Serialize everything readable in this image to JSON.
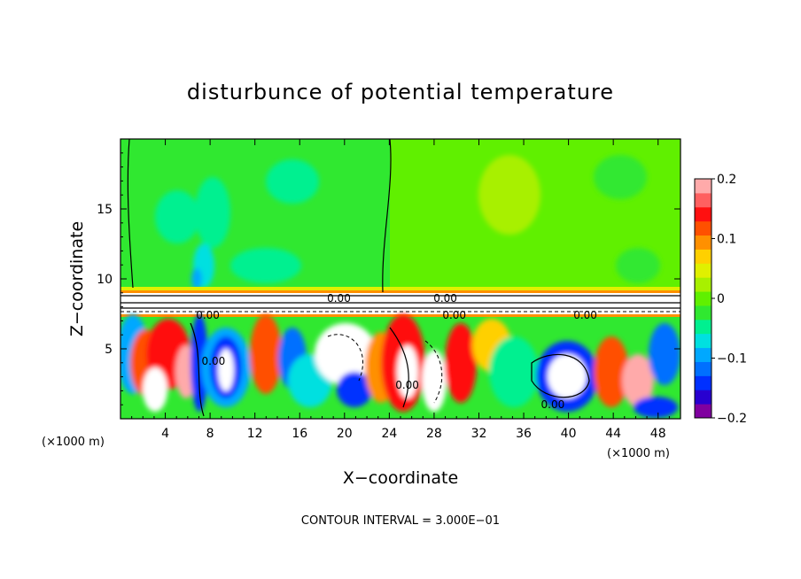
{
  "chart_data": {
    "type": "heatmap",
    "title": "disturbunce of potential temperature",
    "xlabel": "X−coordinate",
    "ylabel": "Z−coordinate",
    "x_unit": "(×1000 m)",
    "x_unit_right": "(×1000 m)",
    "xlim": [
      0,
      50
    ],
    "ylim": [
      0,
      20
    ],
    "xticks": [
      4,
      8,
      12,
      16,
      20,
      24,
      28,
      32,
      36,
      40,
      44,
      48
    ],
    "xtick_labels": [
      "4",
      "8",
      "12",
      "16",
      "20",
      "24",
      "28",
      "32",
      "36",
      "40",
      "44",
      "48"
    ],
    "yticks": [
      5,
      10,
      15
    ],
    "ytick_labels": [
      "5",
      "10",
      "15"
    ],
    "footer": "CONTOUR INTERVAL = 3.000E−01",
    "colorbar": {
      "min": -0.2,
      "max": 0.2,
      "ticks": [
        0.2,
        0.1,
        0,
        -0.1,
        -0.2
      ],
      "tick_labels": [
        "0.2",
        "0.1",
        "0",
        "−0.1",
        "−0.2"
      ],
      "colors": [
        "#8000a0",
        "#2800d0",
        "#0030ff",
        "#0070ff",
        "#00a8ff",
        "#00e0e0",
        "#00f090",
        "#30e830",
        "#60f000",
        "#a8f000",
        "#e0f000",
        "#ffd000",
        "#ff9000",
        "#ff5000",
        "#ff1010",
        "#ff6060",
        "#ffaaaa"
      ]
    },
    "contour_labels": [
      {
        "text": "0.00",
        "x": 7.8,
        "z": 7.4
      },
      {
        "text": "0.00",
        "x": 19.5,
        "z": 8.6
      },
      {
        "text": "0.00",
        "x": 29.0,
        "z": 8.6
      },
      {
        "text": "0.00",
        "x": 29.8,
        "z": 7.4
      },
      {
        "text": "0.00",
        "x": 41.5,
        "z": 7.4
      },
      {
        "text": "0.00",
        "x": 8.3,
        "z": 4.1
      },
      {
        "text": "0.00",
        "x": 25.6,
        "z": 2.4
      },
      {
        "text": "0.00",
        "x": 38.6,
        "z": 1.0
      }
    ]
  }
}
